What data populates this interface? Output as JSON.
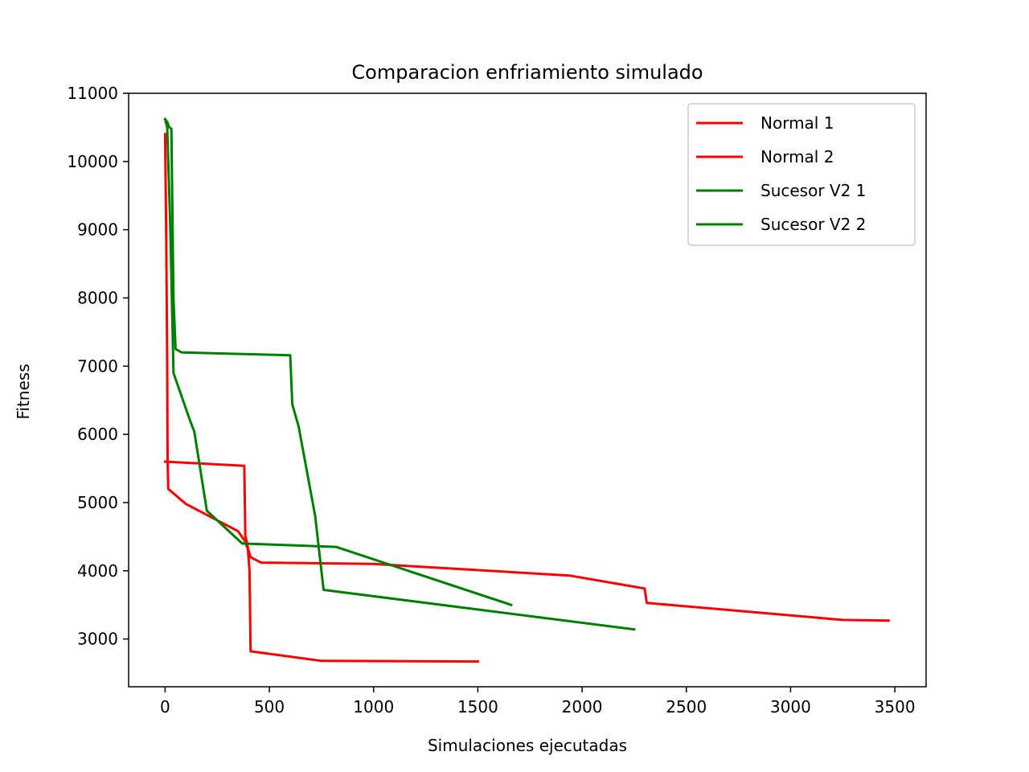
{
  "chart_data": {
    "type": "line",
    "title": "Comparacion enfriamiento simulado",
    "xlabel": "Simulaciones ejecutadas",
    "ylabel": "Fitness",
    "xlim": [
      -175,
      3650
    ],
    "ylim": [
      2300,
      11000
    ],
    "xticks": [
      0,
      500,
      1000,
      1500,
      2000,
      2500,
      3000,
      3500
    ],
    "yticks": [
      3000,
      4000,
      5000,
      6000,
      7000,
      8000,
      9000,
      10000,
      11000
    ],
    "grid": false,
    "legend_position": "upper right",
    "series": [
      {
        "name": "Normal 1",
        "color": "#ff0000",
        "points": [
          [
            0,
            10400
          ],
          [
            5,
            9000
          ],
          [
            10,
            7000
          ],
          [
            12,
            5600
          ],
          [
            15,
            5200
          ],
          [
            100,
            4980
          ],
          [
            350,
            4580
          ],
          [
            380,
            4450
          ],
          [
            400,
            4300
          ],
          [
            410,
            4200
          ],
          [
            460,
            4120
          ],
          [
            1000,
            4100
          ],
          [
            1940,
            3930
          ],
          [
            2300,
            3740
          ],
          [
            2310,
            3530
          ],
          [
            3250,
            3280
          ],
          [
            3470,
            3270
          ]
        ]
      },
      {
        "name": "Normal 2",
        "color": "#ff0000",
        "points": [
          [
            0,
            5600
          ],
          [
            380,
            5540
          ],
          [
            385,
            4500
          ],
          [
            395,
            4400
          ],
          [
            405,
            4000
          ],
          [
            410,
            2820
          ],
          [
            750,
            2680
          ],
          [
            1500,
            2670
          ]
        ]
      },
      {
        "name": "Sucesor V2 1",
        "color": "#008000",
        "points": [
          [
            0,
            10620
          ],
          [
            10,
            10580
          ],
          [
            20,
            10500
          ],
          [
            30,
            10480
          ],
          [
            40,
            8000
          ],
          [
            50,
            7250
          ],
          [
            80,
            7200
          ],
          [
            600,
            7160
          ],
          [
            610,
            6440
          ],
          [
            640,
            6120
          ],
          [
            720,
            4800
          ],
          [
            760,
            3720
          ],
          [
            2250,
            3140
          ]
        ]
      },
      {
        "name": "Sucesor V2 2",
        "color": "#008000",
        "points": [
          [
            0,
            10620
          ],
          [
            10,
            10500
          ],
          [
            25,
            9000
          ],
          [
            40,
            6900
          ],
          [
            120,
            6200
          ],
          [
            140,
            6040
          ],
          [
            200,
            4880
          ],
          [
            370,
            4400
          ],
          [
            820,
            4350
          ],
          [
            1660,
            3500
          ]
        ]
      }
    ]
  }
}
